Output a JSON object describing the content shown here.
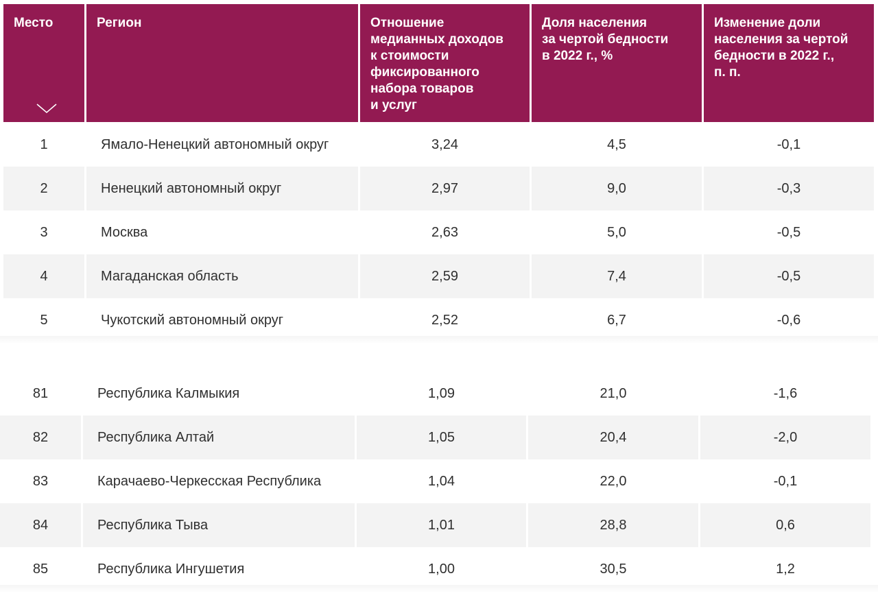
{
  "headers": {
    "place": "Место",
    "region": "Регион",
    "ratio": [
      "Отношение",
      "медианных доходов",
      "к стоимости",
      "фиксированного",
      "набора товаров",
      "и услуг"
    ],
    "share": [
      "Доля населения",
      "за чертой бедности",
      "в 2022 г., %"
    ],
    "change": [
      "Изменение доли",
      "населения за чертой",
      "бедности в 2022 г.,",
      "п. п."
    ]
  },
  "sort_icon": "chevron-down-icon",
  "accent_color": "#931a52",
  "top_rows": [
    {
      "place": "1",
      "region": "Ямало-Ненецкий автономный округ",
      "ratio": "3,24",
      "share": "4,5",
      "change": "-0,1"
    },
    {
      "place": "2",
      "region": "Ненецкий автономный округ",
      "ratio": "2,97",
      "share": "9,0",
      "change": "-0,3"
    },
    {
      "place": "3",
      "region": "Москва",
      "ratio": "2,63",
      "share": "5,0",
      "change": "-0,5"
    },
    {
      "place": "4",
      "region": "Магаданская область",
      "ratio": "2,59",
      "share": "7,4",
      "change": "-0,5"
    },
    {
      "place": "5",
      "region": "Чукотский автономный округ",
      "ratio": "2,52",
      "share": "6,7",
      "change": "-0,6"
    }
  ],
  "bottom_rows": [
    {
      "place": "81",
      "region": "Республика Калмыкия",
      "ratio": "1,09",
      "share": "21,0",
      "change": "-1,6"
    },
    {
      "place": "82",
      "region": "Республика Алтай",
      "ratio": "1,05",
      "share": "20,4",
      "change": "-2,0"
    },
    {
      "place": "83",
      "region": "Карачаево-Черкесская Республика",
      "ratio": "1,04",
      "share": "22,0",
      "change": "-0,1"
    },
    {
      "place": "84",
      "region": "Республика Тыва",
      "ratio": "1,01",
      "share": "28,8",
      "change": "0,6"
    },
    {
      "place": "85",
      "region": "Республика Ингушетия",
      "ratio": "1,00",
      "share": "30,5",
      "change": "1,2"
    }
  ]
}
